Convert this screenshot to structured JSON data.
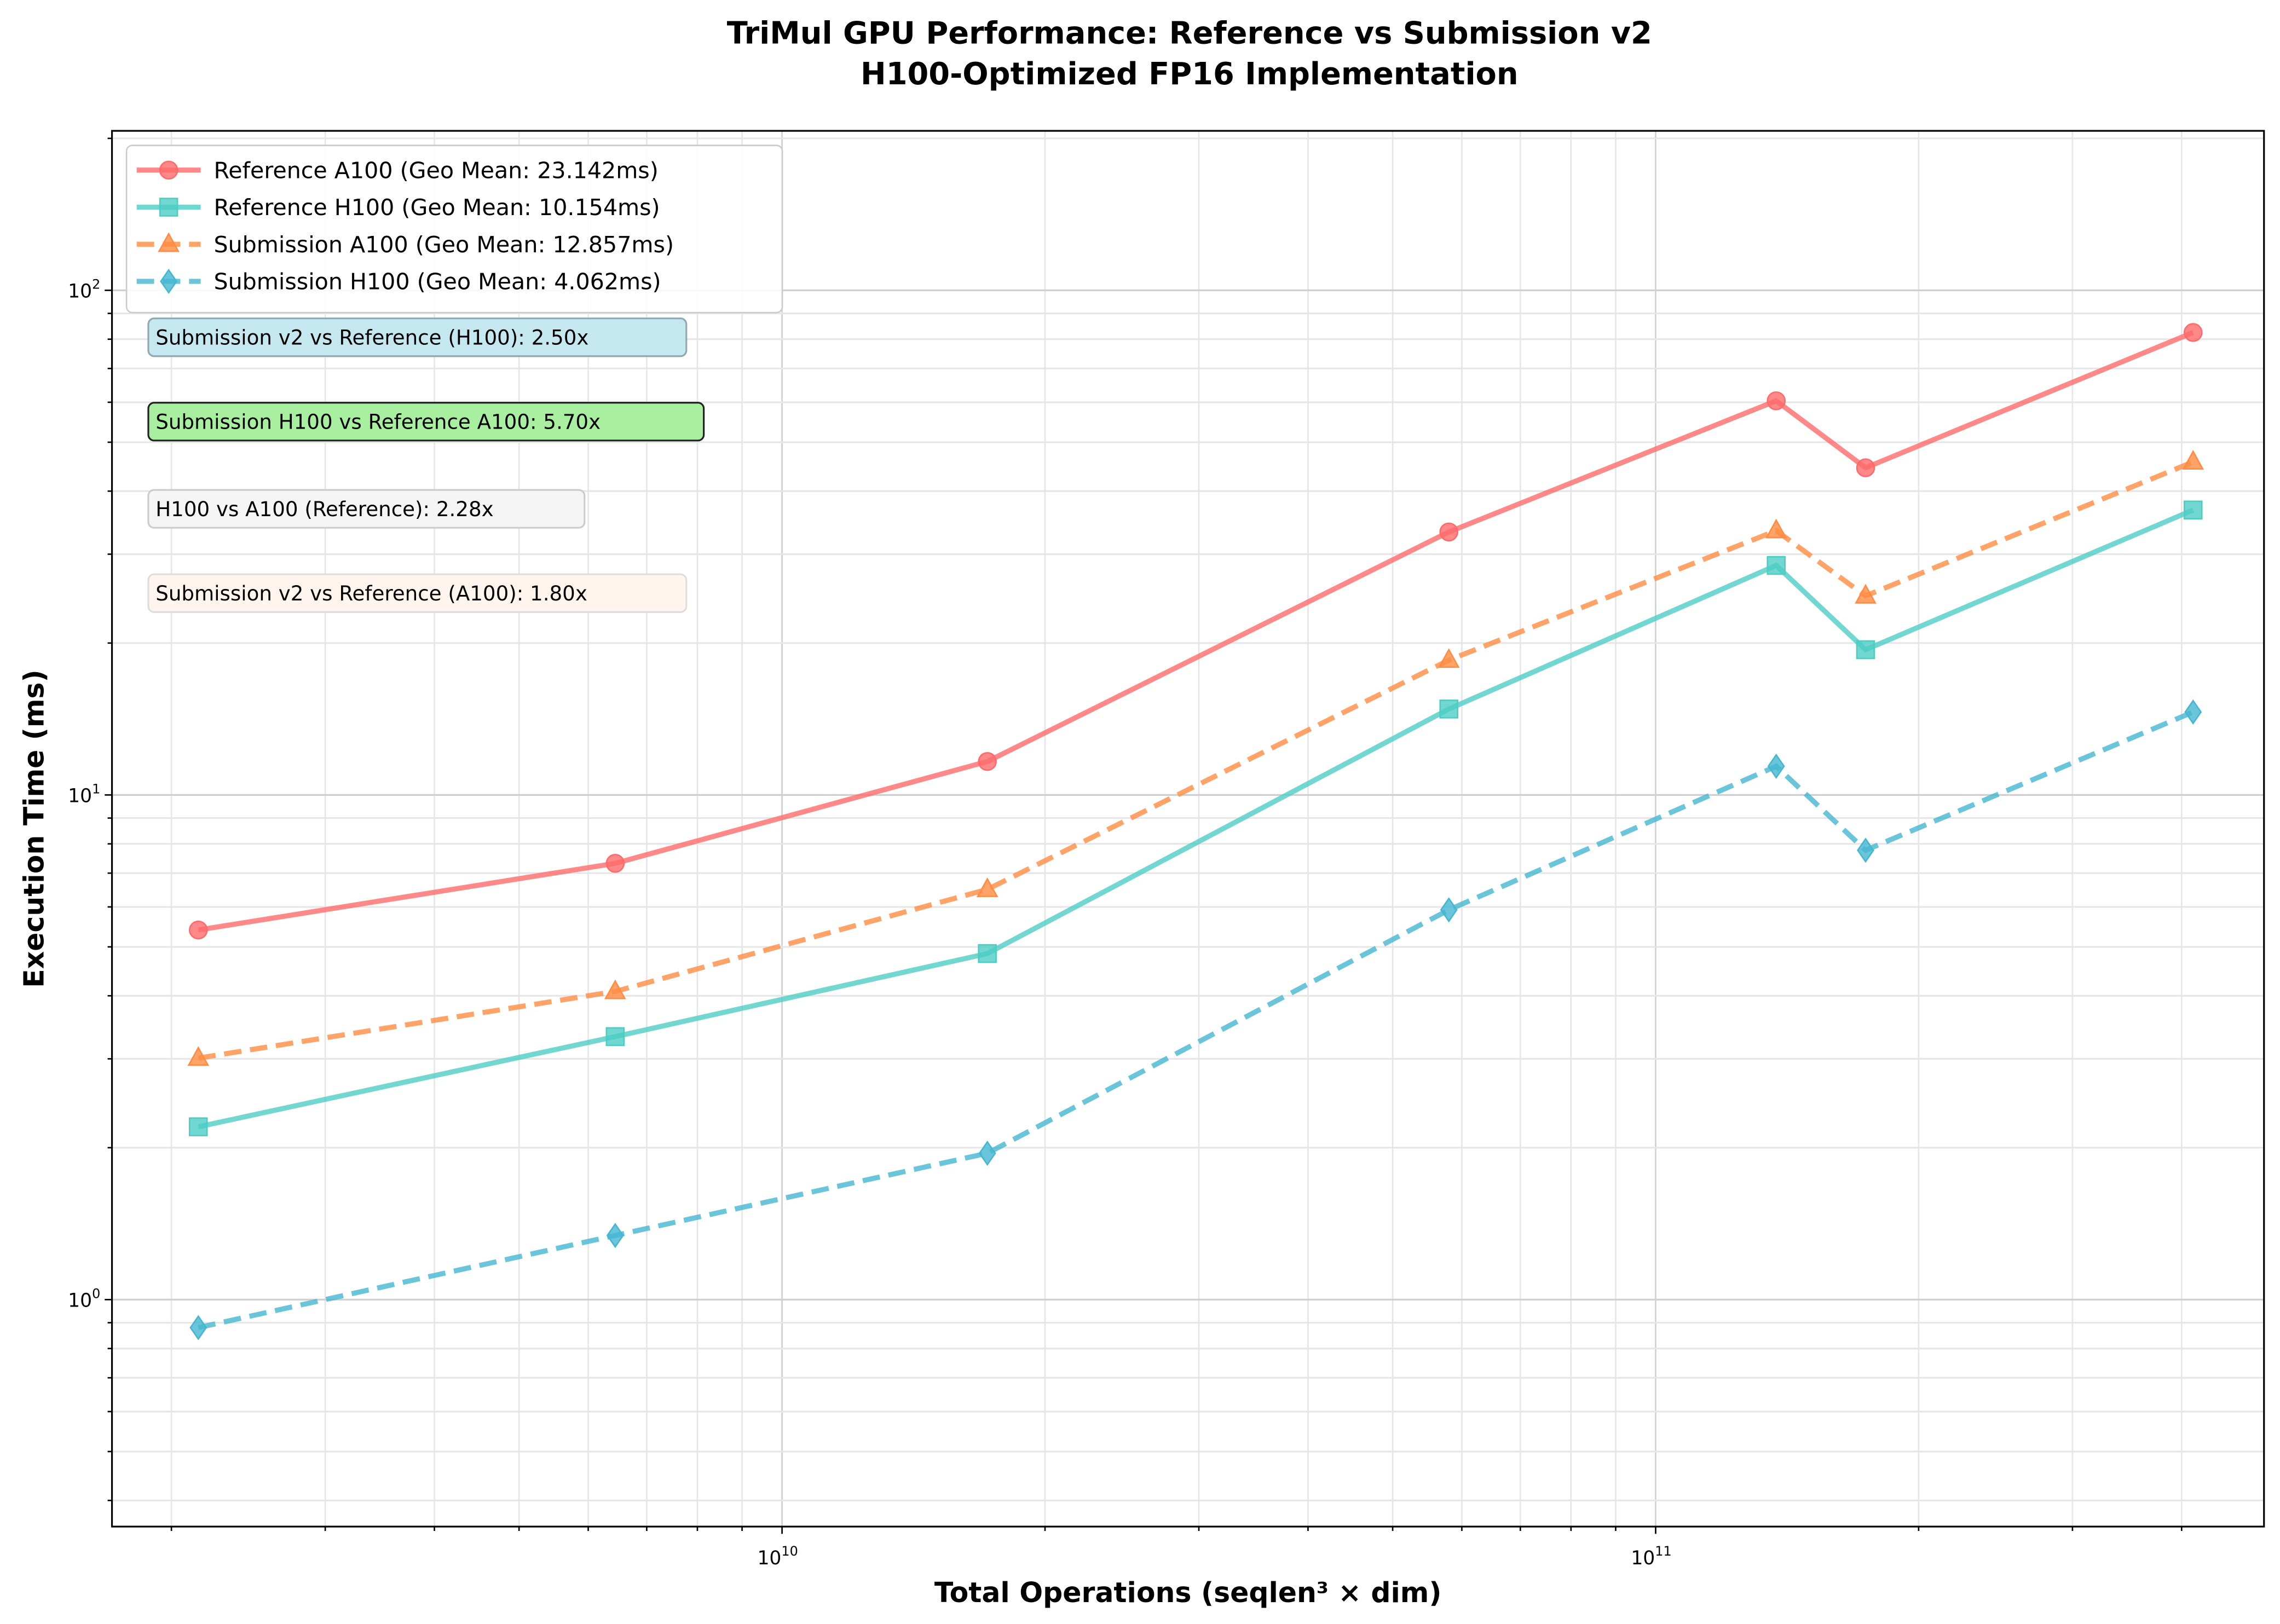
{
  "chart_data": {
    "type": "line",
    "title": "TriMul GPU Performance: Reference vs Submission v2",
    "subtitle": "H100-Optimized FP16 Implementation",
    "xlabel": "Total Operations (seqlen³ × dim)",
    "ylabel": "Execution Time (ms)",
    "xscale": "log",
    "yscale": "log",
    "xlim": [
      1710000000.0,
      497000000000.0
    ],
    "ylim": [
      0.355,
      207
    ],
    "grid": true,
    "legend_position": "top-left",
    "x_ticks": [
      {
        "value": 10000000000.0,
        "base": "10",
        "exp": "10"
      },
      {
        "value": 100000000000.0,
        "base": "10",
        "exp": "11"
      }
    ],
    "y_ticks": [
      {
        "value": 1,
        "base": "10",
        "exp": "0"
      },
      {
        "value": 10,
        "base": "10",
        "exp": "1"
      },
      {
        "value": 100,
        "base": "10",
        "exp": "2"
      }
    ],
    "x": [
      2147000000.0,
      6442000000.0,
      17180000000.0,
      57980000000.0,
      137400000000.0,
      173900000000.0,
      412300000000.0
    ],
    "series": [
      {
        "name": "Reference A100 (Geo Mean: 23.142ms)",
        "color": "#FF6B6B",
        "marker": "circle",
        "dash": "solid",
        "values": [
          5.4,
          7.32,
          11.65,
          33.2,
          60.4,
          44.5,
          82.5
        ]
      },
      {
        "name": "Reference H100 (Geo Mean: 10.154ms)",
        "color": "#4ECDC4",
        "marker": "square",
        "dash": "solid",
        "values": [
          2.2,
          3.32,
          4.85,
          14.8,
          28.5,
          19.4,
          36.7
        ]
      },
      {
        "name": "Submission A100 (Geo Mean: 12.857ms)",
        "color": "#FF8C42",
        "marker": "triangle",
        "dash": "dashed",
        "values": [
          3.01,
          4.08,
          6.5,
          18.5,
          33.4,
          24.8,
          45.7
        ]
      },
      {
        "name": "Submission H100 (Geo Mean: 4.062ms)",
        "color": "#45B7D1",
        "marker": "diamond",
        "dash": "dashed",
        "values": [
          0.88,
          1.34,
          1.95,
          5.92,
          11.4,
          7.77,
          14.6
        ]
      }
    ],
    "annotations": [
      {
        "text": "H100 vs A100 (Reference): 2.28x",
        "bg": "#F5F5F5",
        "border": "#cccccc",
        "hidden_behind_legend": true
      },
      {
        "text": "Submission v2 vs Reference (A100): 1.80x",
        "bg": "#FFF5EE",
        "border": "#dddddd",
        "hidden_behind_legend": true
      },
      {
        "text": "Submission v2 vs Reference (H100): 2.50x",
        "bg": "#C5E8F0",
        "border": "#8fa9b0"
      },
      {
        "text": "Submission H100 vs Reference A100: 5.70x",
        "bg": "#A8F0A0",
        "border": "#222222"
      }
    ]
  }
}
